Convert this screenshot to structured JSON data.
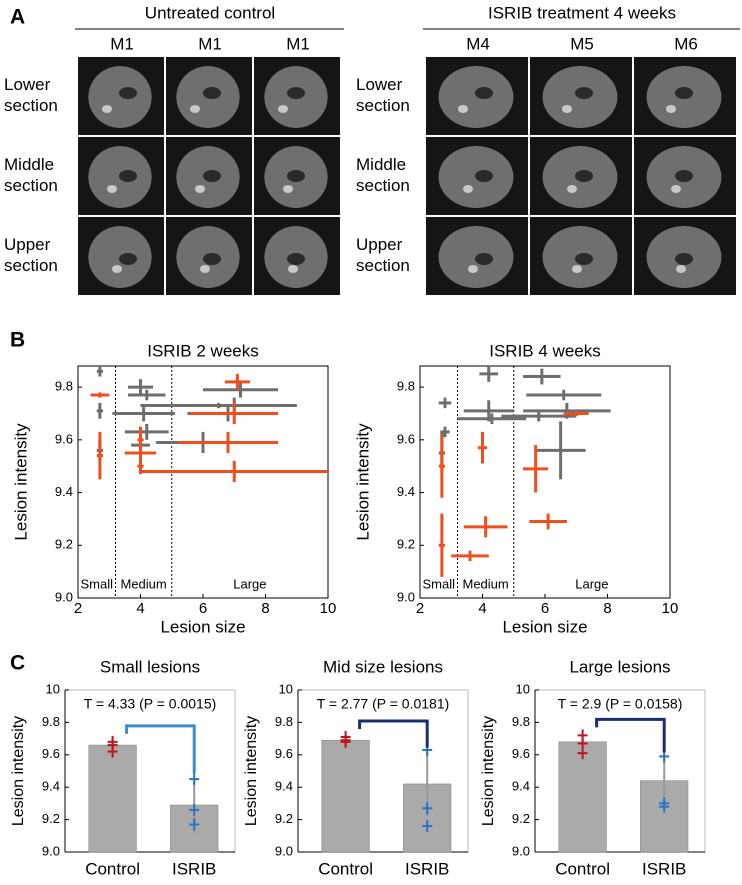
{
  "panel_a": {
    "label": "A",
    "groups": [
      {
        "title": "Untreated control",
        "columns": [
          "M1",
          "M1",
          "M1"
        ]
      },
      {
        "title": "ISRIB treatment 4 weeks",
        "columns": [
          "M4",
          "M5",
          "M6"
        ]
      }
    ],
    "rows": [
      "Lower section",
      "Middle section",
      "Upper section"
    ]
  },
  "panel_b": {
    "label": "B"
  },
  "panel_c": {
    "label": "C"
  },
  "chart_data": [
    {
      "type": "cross",
      "title": "ISRIB 2 weeks",
      "x_label": "Lesion size",
      "y_label": "Lesion intensity",
      "xlim": [
        2,
        10
      ],
      "xticks": [
        2,
        4,
        6,
        8,
        10
      ],
      "ylim": [
        9,
        9.88
      ],
      "yticks": [
        {
          "value": 9,
          "label": "9.0"
        },
        9.2,
        9.4,
        9.6,
        9.8
      ],
      "dividers": [
        3.2,
        5
      ],
      "regions": [
        "Small",
        "Medium",
        "Large"
      ],
      "series": [
        {
          "color": "#6e6e6e",
          "x": [
            2.7,
            2.7,
            2.7,
            4.0,
            4.2,
            4.1,
            4.2,
            4.0,
            7.2,
            7.0,
            6.8,
            6.0,
            6.5
          ],
          "values": [
            9.86,
            9.71,
            9.56,
            9.8,
            9.77,
            9.7,
            9.63,
            9.58,
            9.79,
            9.73,
            9.7,
            9.59,
            9.73
          ],
          "xerr": [
            0.1,
            0.1,
            0.1,
            0.4,
            0.6,
            1.0,
            0.7,
            0.3,
            1.2,
            2.0,
            1.3,
            1.5,
            2.5
          ],
          "yerr": [
            0.02,
            0.03,
            0.04,
            0.03,
            0.02,
            0.03,
            0.03,
            0.03,
            0.03,
            0.03,
            0.03,
            0.04,
            0.01
          ]
        },
        {
          "color": "#f04e1c",
          "x": [
            2.7,
            2.7,
            4.0,
            4.0,
            4.0,
            7.1,
            7.0,
            6.8,
            7.0
          ],
          "values": [
            9.77,
            9.54,
            9.6,
            9.55,
            9.5,
            9.82,
            9.7,
            9.59,
            9.48
          ],
          "xerr": [
            0.3,
            0.1,
            0.1,
            0.5,
            0.1,
            0.4,
            1.4,
            1.6,
            3.0
          ],
          "yerr": [
            0.01,
            0.09,
            0.05,
            0.04,
            0.03,
            0.03,
            0.04,
            0.04,
            0.04
          ]
        }
      ]
    },
    {
      "type": "cross",
      "title": "ISRIB 4 weeks",
      "x_label": "Lesion size",
      "y_label": "Lesion intensity",
      "xlim": [
        2,
        10
      ],
      "xticks": [
        2,
        4,
        6,
        8,
        10
      ],
      "ylim": [
        9,
        9.88
      ],
      "yticks": [
        {
          "value": 9,
          "label": "9.0"
        },
        9.2,
        9.4,
        9.6,
        9.8
      ],
      "dividers": [
        3.2,
        5
      ],
      "regions": [
        "Small",
        "Medium",
        "Large"
      ],
      "series": [
        {
          "color": "#6e6e6e",
          "x": [
            2.8,
            2.8,
            2.7,
            4.2,
            4.2,
            4.3,
            5.9,
            6.6,
            6.7,
            6.5,
            5.8
          ],
          "values": [
            9.74,
            9.63,
            9.55,
            9.85,
            9.71,
            9.68,
            9.84,
            9.77,
            9.71,
            9.56,
            9.69
          ],
          "xerr": [
            0.2,
            0.15,
            0.1,
            0.3,
            0.8,
            1.1,
            0.6,
            1.2,
            1.4,
            0.8,
            1.2
          ],
          "yerr": [
            0.02,
            0.02,
            0.08,
            0.03,
            0.04,
            0.02,
            0.03,
            0.02,
            0.03,
            0.11,
            0.02
          ]
        },
        {
          "color": "#f04e1c",
          "x": [
            2.7,
            2.7,
            4.0,
            4.1,
            3.6,
            6.1,
            5.7,
            7.0
          ],
          "values": [
            9.5,
            9.2,
            9.57,
            9.27,
            9.16,
            9.29,
            9.49,
            9.7
          ],
          "xerr": [
            0.1,
            0.1,
            0.15,
            0.7,
            0.6,
            0.6,
            0.4,
            0.4
          ],
          "yerr": [
            0.12,
            0.12,
            0.06,
            0.04,
            0.02,
            0.03,
            0.09,
            0.01
          ]
        }
      ]
    },
    {
      "type": "bar",
      "title": "Small lesions",
      "annotation": "T = 4.33 (P = 0.0015)",
      "y_label": "Lesion intensity",
      "categories": [
        "Control",
        "ISRIB"
      ],
      "values": [
        9.66,
        9.29
      ],
      "errors": [
        0.05,
        0.17
      ],
      "points": [
        [
          9.68,
          9.66,
          9.62
        ],
        [
          9.45,
          9.26,
          9.17
        ]
      ],
      "color": "#aaaaaa",
      "point_colors": [
        "#c0141c",
        "#2a72c4"
      ],
      "bracket_color": "#3b8ccc",
      "ylim": [
        9,
        10
      ],
      "yticks": [
        {
          "value": 9,
          "label": "9.0"
        },
        9.2,
        9.4,
        9.6,
        9.8,
        10
      ]
    },
    {
      "type": "bar",
      "title": "Mid size lesions",
      "annotation": "T = 2.77 (P = 0.0181)",
      "y_label": "Lesion intensity",
      "categories": [
        "Control",
        "ISRIB"
      ],
      "values": [
        9.69,
        9.42
      ],
      "errors": [
        0.04,
        0.2
      ],
      "points": [
        [
          9.71,
          9.69,
          9.68
        ],
        [
          9.63,
          9.27,
          9.16
        ]
      ],
      "color": "#aaaaaa",
      "point_colors": [
        "#c0141c",
        "#2a72c4"
      ],
      "bracket_color": "#1a2f6e",
      "ylim": [
        9,
        10
      ],
      "yticks": [
        {
          "value": 9,
          "label": "9.0"
        },
        9.2,
        9.4,
        9.6,
        9.8,
        10
      ]
    },
    {
      "type": "bar",
      "title": "Large lesions",
      "annotation": "T = 2.9 (P = 0.0158)",
      "y_label": "Lesion intensity",
      "categories": [
        "Control",
        "ISRIB"
      ],
      "values": [
        9.68,
        9.44
      ],
      "errors": [
        0.06,
        0.15
      ],
      "points": [
        [
          9.72,
          9.67,
          9.61
        ],
        [
          9.59,
          9.3,
          9.28
        ]
      ],
      "color": "#aaaaaa",
      "point_colors": [
        "#c0141c",
        "#2a72c4"
      ],
      "bracket_color": "#1a2f6e",
      "ylim": [
        9,
        10
      ],
      "yticks": [
        {
          "value": 9,
          "label": "9.0"
        },
        9.2,
        9.4,
        9.6,
        9.8,
        10
      ]
    }
  ]
}
